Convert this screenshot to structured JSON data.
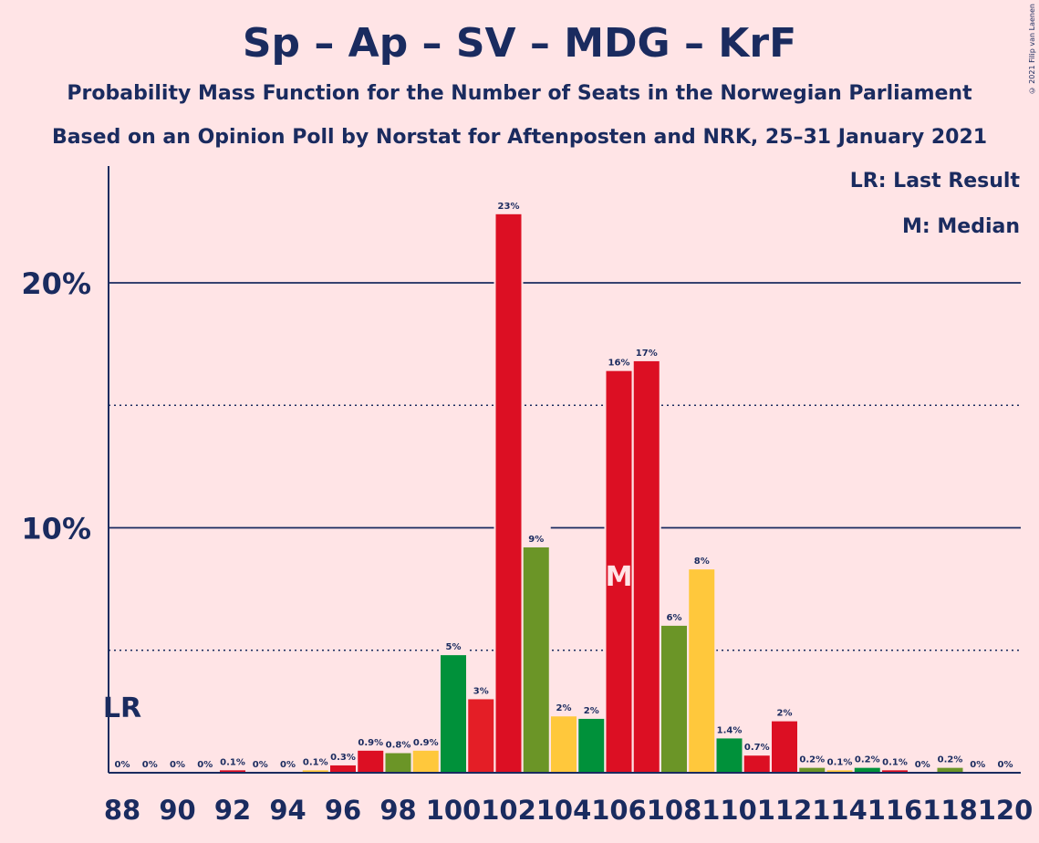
{
  "title": "Sp – Ap – SV – MDG – KrF",
  "subtitle1": "Probability Mass Function for the Number of Seats in the Norwegian Parliament",
  "subtitle2": "Based on an Opinion Poll by Norstat for Aftenposten and NRK, 25–31 January 2021",
  "credit": "© 2021 Filip van Laenen",
  "legend": {
    "lr": "LR: Last Result",
    "m": "M: Median"
  },
  "colors": {
    "background": "#FFE4E6",
    "text": "#1A2B5F",
    "red": "#DC0F23",
    "green": "#6B9527",
    "yellow": "#FFC83C",
    "darkgreen": "#00913A",
    "orangered": "#E41E26"
  },
  "chart_data": {
    "type": "bar",
    "x": [
      88,
      89,
      90,
      91,
      92,
      93,
      94,
      95,
      96,
      97,
      98,
      99,
      100,
      101,
      102,
      103,
      104,
      105,
      106,
      107,
      108,
      109,
      110,
      111,
      112,
      113,
      114,
      115,
      116,
      117,
      118,
      119,
      120
    ],
    "values": [
      0,
      0,
      0,
      0,
      0.1,
      0,
      0,
      0.1,
      0.3,
      0.9,
      0.8,
      0.9,
      4.8,
      3,
      22.8,
      9.2,
      2.3,
      2.2,
      16.4,
      16.8,
      6,
      8.3,
      1.4,
      0.7,
      2.1,
      0.2,
      0.1,
      0.2,
      0.1,
      0,
      0.2,
      0,
      0
    ],
    "labels": [
      "0%",
      "0%",
      "0%",
      "0%",
      "0.1%",
      "0%",
      "0%",
      "0.1%",
      "0.3%",
      "0.9%",
      "0.8%",
      "0.9%",
      "5%",
      "3%",
      "23%",
      "9%",
      "2%",
      "2%",
      "16%",
      "17%",
      "6%",
      "8%",
      "1.4%",
      "0.7%",
      "2%",
      "0.2%",
      "0.1%",
      "0.2%",
      "0.1%",
      "0%",
      "0.2%",
      "0%",
      "0%"
    ],
    "bar_colors": [
      "#DC0F23",
      "#6B9527",
      "#FFC83C",
      "#00913A",
      "#DC0F23",
      "#DC0F23",
      "#6B9527",
      "#FFC83C",
      "#DC0F23",
      "#DC0F23",
      "#6B9527",
      "#FFC83C",
      "#00913A",
      "#E41E26",
      "#DC0F23",
      "#6B9527",
      "#FFC83C",
      "#00913A",
      "#DC0F23",
      "#DC0F23",
      "#6B9527",
      "#FFC83C",
      "#00913A",
      "#DC0F23",
      "#DC0F23",
      "#6B9527",
      "#FFC83C",
      "#00913A",
      "#DC0F23",
      "#DC0F23",
      "#6B9527",
      "#FFC83C",
      "#00913A"
    ],
    "xticks": [
      "88",
      "90",
      "92",
      "94",
      "96",
      "98",
      "100",
      "102",
      "104",
      "106",
      "108",
      "110",
      "112",
      "114",
      "116",
      "118",
      "120"
    ],
    "yticks": [
      "10%",
      "20%"
    ],
    "ylim": [
      0,
      24.8
    ],
    "solid_grid": [
      10,
      20
    ],
    "dotted_grid": [
      5,
      15
    ],
    "last_result": {
      "seat": 88,
      "label": "LR"
    },
    "median": {
      "seat": 106,
      "label": "M"
    }
  }
}
